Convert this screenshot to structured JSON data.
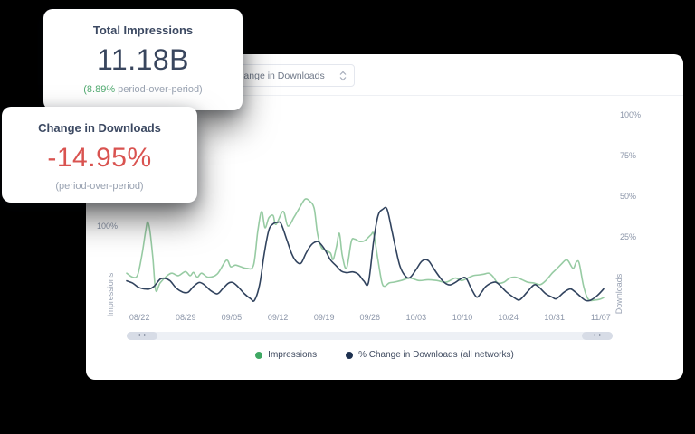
{
  "colors": {
    "background": "#000000",
    "panel": "#ffffff",
    "value_navy": "#39465e",
    "value_red": "#d95350",
    "green_accent": "#52ab71",
    "impressions_line": "#97cba3",
    "downloads_line": "#31435e",
    "axis_text": "#8c96a9"
  },
  "cards": [
    {
      "title": "Total Impressions",
      "value": "11.18B",
      "sub_highlight": "(8.89%",
      "sub_rest": " period-over-period)"
    },
    {
      "title": "Change in Downloads",
      "value": "-14.95%",
      "sub": "(period-over-period)"
    }
  ],
  "panel": {
    "metric_select": {
      "value": "Change in Downloads"
    },
    "scrollbar": {
      "left_arrow": "◂",
      "right_arrow": "▸"
    },
    "legend": [
      {
        "label": "Impressions",
        "color": "#3fa863"
      },
      {
        "label": "% Change in Downloads (all networks)",
        "color": "#1e3150"
      }
    ]
  },
  "chart_data": {
    "type": "line",
    "title": "",
    "x_ticks": [
      {
        "f": 0.027,
        "label": "08/22"
      },
      {
        "f": 0.124,
        "label": "08/29"
      },
      {
        "f": 0.22,
        "label": "09/05"
      },
      {
        "f": 0.317,
        "label": "09/12"
      },
      {
        "f": 0.414,
        "label": "09/19"
      },
      {
        "f": 0.51,
        "label": "09/26"
      },
      {
        "f": 0.607,
        "label": "10/03"
      },
      {
        "f": 0.704,
        "label": "10/10"
      },
      {
        "f": 0.8,
        "label": "10/24"
      },
      {
        "f": 0.897,
        "label": "10/31"
      },
      {
        "f": 0.994,
        "label": "11/07"
      }
    ],
    "left_axis": {
      "title": "Impressions",
      "ticks": [
        100
      ],
      "unit": "%"
    },
    "right_axis": {
      "title": "Downloads",
      "ticks": [
        100,
        75,
        50,
        25
      ],
      "unit": "%"
    },
    "grid": false,
    "legend_position": "bottom",
    "series": [
      {
        "name": "Impressions",
        "axis": "left",
        "color": "#97cba3",
        "points": [
          [
            0,
            42
          ],
          [
            0.013,
            37
          ],
          [
            0.023,
            40
          ],
          [
            0.032,
            65
          ],
          [
            0.04,
            95
          ],
          [
            0.044,
            105
          ],
          [
            0.049,
            93
          ],
          [
            0.055,
            60
          ],
          [
            0.061,
            21
          ],
          [
            0.07,
            30
          ],
          [
            0.085,
            39
          ],
          [
            0.095,
            42
          ],
          [
            0.108,
            39
          ],
          [
            0.123,
            44
          ],
          [
            0.133,
            39
          ],
          [
            0.14,
            43
          ],
          [
            0.148,
            37
          ],
          [
            0.157,
            42
          ],
          [
            0.171,
            37
          ],
          [
            0.19,
            41
          ],
          [
            0.209,
            58
          ],
          [
            0.218,
            50
          ],
          [
            0.228,
            52
          ],
          [
            0.239,
            50
          ],
          [
            0.252,
            48
          ],
          [
            0.266,
            52
          ],
          [
            0.275,
            94
          ],
          [
            0.283,
            118
          ],
          [
            0.29,
            98
          ],
          [
            0.298,
            110
          ],
          [
            0.307,
            113
          ],
          [
            0.313,
            102
          ],
          [
            0.328,
            118
          ],
          [
            0.338,
            100
          ],
          [
            0.351,
            111
          ],
          [
            0.364,
            124
          ],
          [
            0.374,
            133
          ],
          [
            0.383,
            131
          ],
          [
            0.393,
            122
          ],
          [
            0.4,
            91
          ],
          [
            0.408,
            74
          ],
          [
            0.417,
            70
          ],
          [
            0.427,
            67
          ],
          [
            0.433,
            59
          ],
          [
            0.44,
            75
          ],
          [
            0.446,
            91
          ],
          [
            0.452,
            64
          ],
          [
            0.461,
            48
          ],
          [
            0.471,
            81
          ],
          [
            0.478,
            84
          ],
          [
            0.488,
            81
          ],
          [
            0.499,
            82
          ],
          [
            0.512,
            89
          ],
          [
            0.518,
            90
          ],
          [
            0.527,
            58
          ],
          [
            0.535,
            31
          ],
          [
            0.541,
            26
          ],
          [
            0.55,
            30
          ],
          [
            0.56,
            31
          ],
          [
            0.575,
            33
          ],
          [
            0.594,
            36
          ],
          [
            0.613,
            33
          ],
          [
            0.632,
            34
          ],
          [
            0.651,
            33
          ],
          [
            0.67,
            31
          ],
          [
            0.689,
            36
          ],
          [
            0.702,
            33
          ],
          [
            0.715,
            36
          ],
          [
            0.727,
            39
          ],
          [
            0.74,
            40
          ],
          [
            0.75,
            41
          ],
          [
            0.759,
            42
          ],
          [
            0.768,
            38
          ],
          [
            0.778,
            30
          ],
          [
            0.791,
            31
          ],
          [
            0.803,
            36
          ],
          [
            0.816,
            37
          ],
          [
            0.829,
            34
          ],
          [
            0.841,
            31
          ],
          [
            0.854,
            30
          ],
          [
            0.867,
            28
          ],
          [
            0.879,
            33
          ],
          [
            0.892,
            42
          ],
          [
            0.901,
            47
          ],
          [
            0.911,
            53
          ],
          [
            0.92,
            58
          ],
          [
            0.926,
            57
          ],
          [
            0.936,
            48
          ],
          [
            0.943,
            56
          ],
          [
            0.949,
            54
          ],
          [
            0.958,
            26
          ],
          [
            0.968,
            10
          ],
          [
            0.981,
            9
          ],
          [
            0.992,
            10
          ],
          [
            1,
            12
          ]
        ]
      },
      {
        "name": "% Change in Downloads (all networks)",
        "axis": "right",
        "color": "#31435e",
        "points": [
          [
            0,
            -2
          ],
          [
            0.013,
            -3.5
          ],
          [
            0.025,
            -6
          ],
          [
            0.038,
            -7
          ],
          [
            0.047,
            -7
          ],
          [
            0.057,
            -5.5
          ],
          [
            0.07,
            -1
          ],
          [
            0.08,
            -0.5
          ],
          [
            0.091,
            -2
          ],
          [
            0.104,
            -6.5
          ],
          [
            0.118,
            -9
          ],
          [
            0.129,
            -9
          ],
          [
            0.14,
            -5.5
          ],
          [
            0.152,
            -3
          ],
          [
            0.163,
            -4.5
          ],
          [
            0.176,
            -8
          ],
          [
            0.19,
            -10
          ],
          [
            0.201,
            -7
          ],
          [
            0.213,
            -3.5
          ],
          [
            0.222,
            -3
          ],
          [
            0.233,
            -5.5
          ],
          [
            0.247,
            -10
          ],
          [
            0.26,
            -13
          ],
          [
            0.268,
            -14
          ],
          [
            0.279,
            -4
          ],
          [
            0.288,
            14
          ],
          [
            0.298,
            29
          ],
          [
            0.307,
            33
          ],
          [
            0.317,
            34
          ],
          [
            0.324,
            33
          ],
          [
            0.336,
            23
          ],
          [
            0.347,
            14
          ],
          [
            0.357,
            9.5
          ],
          [
            0.366,
            9
          ],
          [
            0.376,
            15
          ],
          [
            0.387,
            20
          ],
          [
            0.397,
            22
          ],
          [
            0.404,
            21.5
          ],
          [
            0.416,
            17
          ],
          [
            0.427,
            11
          ],
          [
            0.44,
            7
          ],
          [
            0.45,
            4
          ],
          [
            0.461,
            3
          ],
          [
            0.474,
            3.5
          ],
          [
            0.486,
            2
          ],
          [
            0.497,
            -2
          ],
          [
            0.507,
            -3
          ],
          [
            0.518,
            23
          ],
          [
            0.527,
            38
          ],
          [
            0.537,
            42
          ],
          [
            0.546,
            42
          ],
          [
            0.556,
            29
          ],
          [
            0.564,
            18
          ],
          [
            0.573,
            7
          ],
          [
            0.584,
            1
          ],
          [
            0.594,
            0
          ],
          [
            0.607,
            5
          ],
          [
            0.617,
            9.5
          ],
          [
            0.626,
            11
          ],
          [
            0.634,
            10
          ],
          [
            0.645,
            5
          ],
          [
            0.657,
            0
          ],
          [
            0.666,
            -3
          ],
          [
            0.677,
            -4.5
          ],
          [
            0.689,
            -3
          ],
          [
            0.702,
            -0.5
          ],
          [
            0.712,
            -0.5
          ],
          [
            0.723,
            -7
          ],
          [
            0.734,
            -12
          ],
          [
            0.744,
            -9
          ],
          [
            0.753,
            -5.5
          ],
          [
            0.768,
            -3
          ],
          [
            0.778,
            -3.5
          ],
          [
            0.797,
            -9
          ],
          [
            0.816,
            -13
          ],
          [
            0.825,
            -13.5
          ],
          [
            0.841,
            -8.5
          ],
          [
            0.854,
            -4.5
          ],
          [
            0.863,
            -5.5
          ],
          [
            0.879,
            -10
          ],
          [
            0.892,
            -12
          ],
          [
            0.901,
            -13
          ],
          [
            0.917,
            -9
          ],
          [
            0.93,
            -7
          ],
          [
            0.939,
            -8.5
          ],
          [
            0.953,
            -12
          ],
          [
            0.962,
            -14
          ],
          [
            0.972,
            -14
          ],
          [
            0.987,
            -11
          ],
          [
            1,
            -7
          ]
        ]
      }
    ]
  }
}
